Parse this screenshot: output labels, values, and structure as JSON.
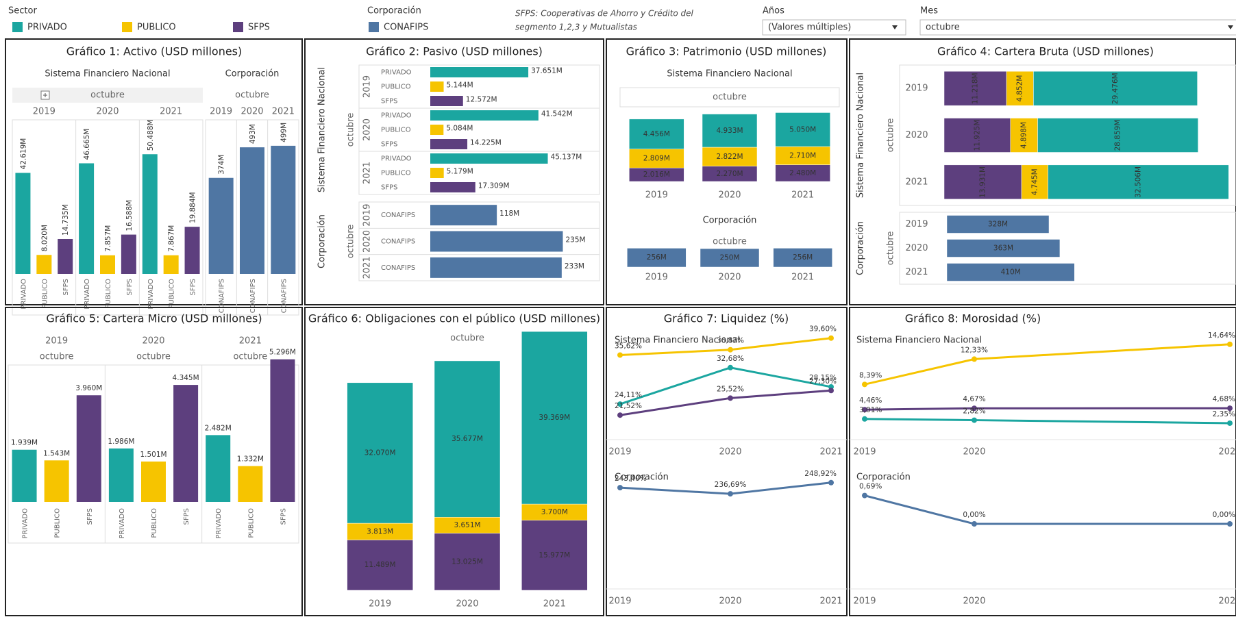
{
  "header": {
    "sector": {
      "label": "Sector",
      "items": [
        {
          "name": "PRIVADO",
          "color": "#1ba6a0"
        },
        {
          "name": "PUBLICO",
          "color": "#f6c400"
        },
        {
          "name": "SFPS",
          "color": "#5d3f7e"
        }
      ]
    },
    "corporation": {
      "label": "Corporación",
      "items": [
        {
          "name": "CONAFIPS",
          "color": "#4f76a3"
        }
      ]
    },
    "note": [
      "SFPS: Cooperativas de Ahorro y Crédito del",
      "segmento 1,2,3 y Mutualistas"
    ],
    "filters": [
      {
        "label": "Años",
        "value": "(Valores múltiples)"
      },
      {
        "label": "Mes",
        "value": "octubre"
      }
    ]
  },
  "chart_data": [
    {
      "type": "bar",
      "title": "Gráfico 1: Activo (USD millones)",
      "panes": [
        {
          "title": "Sistema Financiero Nacional",
          "month": "octubre",
          "ylim": [
            0,
            65000
          ],
          "groups": [
            {
              "label": "2019",
              "categories": [
                "PRIVADO",
                "PUBLICO",
                "SFPS"
              ],
              "colors": [
                "#1ba6a0",
                "#f6c400",
                "#5d3f7e"
              ],
              "values": [
                42619,
                8020,
                14735
              ],
              "value_labels": [
                "42.619M",
                "8.020M",
                "14.735M"
              ]
            },
            {
              "label": "2020",
              "categories": [
                "PRIVADO",
                "PUBLICO",
                "SFPS"
              ],
              "colors": [
                "#1ba6a0",
                "#f6c400",
                "#5d3f7e"
              ],
              "values": [
                46665,
                7857,
                16588
              ],
              "value_labels": [
                "46.665M",
                "7.857M",
                "16.588M"
              ]
            },
            {
              "label": "2021",
              "categories": [
                "PRIVADO",
                "PUBLICO",
                "SFPS"
              ],
              "colors": [
                "#1ba6a0",
                "#f6c400",
                "#5d3f7e"
              ],
              "values": [
                50488,
                7867,
                19884
              ],
              "value_labels": [
                "50.488M",
                "7.867M",
                "19.884M"
              ]
            }
          ]
        },
        {
          "title": "Corporación",
          "month": "octubre",
          "ylim": [
            0,
            600
          ],
          "groups": [
            {
              "label": "2019",
              "categories": [
                "CONAFIPS"
              ],
              "colors": [
                "#4f76a3"
              ],
              "values": [
                374
              ],
              "value_labels": [
                "374M"
              ]
            },
            {
              "label": "2020",
              "categories": [
                "CONAFIPS"
              ],
              "colors": [
                "#4f76a3"
              ],
              "values": [
                493
              ],
              "value_labels": [
                "493M"
              ]
            },
            {
              "label": "2021",
              "categories": [
                "CONAFIPS"
              ],
              "colors": [
                "#4f76a3"
              ],
              "values": [
                499
              ],
              "value_labels": [
                "499M"
              ]
            }
          ]
        }
      ]
    },
    {
      "type": "hbar",
      "title": "Gráfico 2: Pasivo (USD millones)",
      "panes": [
        {
          "title": "Sistema Financiero Nacional",
          "month": "octubre",
          "xlim": [
            0,
            65000
          ],
          "groups": [
            {
              "label": "2019",
              "categories": [
                "PRIVADO",
                "PUBLICO",
                "SFPS"
              ],
              "colors": [
                "#1ba6a0",
                "#f6c400",
                "#5d3f7e"
              ],
              "values": [
                37651,
                5144,
                12572
              ],
              "value_labels": [
                "37.651M",
                "5.144M",
                "12.572M"
              ]
            },
            {
              "label": "2020",
              "categories": [
                "PRIVADO",
                "PUBLICO",
                "SFPS"
              ],
              "colors": [
                "#1ba6a0",
                "#f6c400",
                "#5d3f7e"
              ],
              "values": [
                41542,
                5084,
                14225
              ],
              "value_labels": [
                "41.542M",
                "5.084M",
                "14.225M"
              ]
            },
            {
              "label": "2021",
              "categories": [
                "PRIVADO",
                "PUBLICO",
                "SFPS"
              ],
              "colors": [
                "#1ba6a0",
                "#f6c400",
                "#5d3f7e"
              ],
              "values": [
                45137,
                5179,
                17309
              ],
              "value_labels": [
                "45.137M",
                "5.179M",
                "17.309M"
              ]
            }
          ]
        },
        {
          "title": "Corporación",
          "month": "octubre",
          "xlim": [
            0,
            300
          ],
          "groups": [
            {
              "label": "2019",
              "categories": [
                "CONAFIPS"
              ],
              "colors": [
                "#4f76a3"
              ],
              "values": [
                118
              ],
              "value_labels": [
                "118M"
              ]
            },
            {
              "label": "2020",
              "categories": [
                "CONAFIPS"
              ],
              "colors": [
                "#4f76a3"
              ],
              "values": [
                235
              ],
              "value_labels": [
                "235M"
              ]
            },
            {
              "label": "2021",
              "categories": [
                "CONAFIPS"
              ],
              "colors": [
                "#4f76a3"
              ],
              "values": [
                233
              ],
              "value_labels": [
                "233M"
              ]
            }
          ]
        }
      ]
    },
    {
      "type": "stacked_bar",
      "title": "Gráfico 3: Patrimonio (USD millones)",
      "panes": [
        {
          "title": "Sistema Financiero Nacional",
          "month": "octubre",
          "ylim": [
            0,
            11000
          ],
          "categories": [
            "2019",
            "2020",
            "2021"
          ],
          "series": [
            {
              "color": "#5d3f7e",
              "values": [
                2016,
                2270,
                2480
              ],
              "value_labels": [
                "2.016M",
                "2.270M",
                "2.480M"
              ]
            },
            {
              "color": "#f6c400",
              "values": [
                2809,
                2822,
                2710
              ],
              "value_labels": [
                "2.809M",
                "2.822M",
                "2.710M"
              ]
            },
            {
              "color": "#1ba6a0",
              "values": [
                4456,
                4933,
                5050
              ],
              "value_labels": [
                "4.456M",
                "4.933M",
                "5.050M"
              ]
            }
          ]
        },
        {
          "title": "Corporación",
          "month": "octubre",
          "ylim": [
            0,
            260
          ],
          "categories": [
            "2019",
            "2020",
            "2021"
          ],
          "series": [
            {
              "color": "#4f76a3",
              "values": [
                256,
                250,
                256
              ],
              "value_labels": [
                "256M",
                "250M",
                "256M"
              ]
            }
          ]
        }
      ]
    },
    {
      "type": "stacked_hbar",
      "title": "Gráfico 4: Cartera Bruta (USD millones)",
      "panes": [
        {
          "title": "Sistema Financiero Nacional",
          "month": "octubre",
          "xlim": [
            0,
            52000
          ],
          "categories": [
            "2019",
            "2020",
            "2021"
          ],
          "series": [
            {
              "color": "#5d3f7e",
              "values": [
                11218,
                11925,
                13931
              ],
              "value_labels": [
                "11.218M",
                "11.925M",
                "13.931M"
              ]
            },
            {
              "color": "#f6c400",
              "values": [
                4852,
                4898,
                4745
              ],
              "value_labels": [
                "4.852M",
                "4.898M",
                "4.745M"
              ]
            },
            {
              "color": "#1ba6a0",
              "values": [
                29476,
                28859,
                32506
              ],
              "value_labels": [
                "29.476M",
                "28.859M",
                "32.506M"
              ]
            }
          ]
        },
        {
          "title": "Corporación",
          "month": "octubre",
          "xlim": [
            0,
            920
          ],
          "categories": [
            "2019",
            "2020",
            "2021"
          ],
          "series": [
            {
              "color": "#4f76a3",
              "values": [
                328,
                363,
                410
              ],
              "value_labels": [
                "328M",
                "363M",
                "410M"
              ]
            }
          ]
        }
      ]
    },
    {
      "type": "bar",
      "title": "Gráfico 5: Cartera Micro (USD millones)",
      "panes": [
        {
          "ylim": [
            0,
            6000
          ],
          "groups": [
            {
              "label": "2019",
              "month": "octubre",
              "categories": [
                "PRIVADO",
                "PUBLICO",
                "SFPS"
              ],
              "colors": [
                "#1ba6a0",
                "#f6c400",
                "#5d3f7e"
              ],
              "values": [
                1939,
                1543,
                3960
              ],
              "value_labels": [
                "1.939M",
                "1.543M",
                "3.960M"
              ]
            },
            {
              "label": "2020",
              "month": "octubre",
              "categories": [
                "PRIVADO",
                "PUBLICO",
                "SFPS"
              ],
              "colors": [
                "#1ba6a0",
                "#f6c400",
                "#5d3f7e"
              ],
              "values": [
                1986,
                1501,
                4345
              ],
              "value_labels": [
                "1.986M",
                "1.501M",
                "4.345M"
              ]
            },
            {
              "label": "2021",
              "month": "octubre",
              "categories": [
                "PRIVADO",
                "PUBLICO",
                "SFPS"
              ],
              "colors": [
                "#1ba6a0",
                "#f6c400",
                "#5d3f7e"
              ],
              "values": [
                2482,
                1332,
                5296
              ],
              "value_labels": [
                "2.482M",
                "1.332M",
                "5.296M"
              ]
            }
          ]
        }
      ]
    },
    {
      "type": "stacked_bar",
      "title": "Gráfico 6: Obligaciones con el público (USD millones)",
      "panes": [
        {
          "month": "octubre",
          "ylim": [
            0,
            60000
          ],
          "categories": [
            "2019",
            "2020",
            "2021"
          ],
          "series": [
            {
              "color": "#5d3f7e",
              "values": [
                11489,
                13025,
                15977
              ],
              "value_labels": [
                "11.489M",
                "13.025M",
                "15.977M"
              ]
            },
            {
              "color": "#f6c400",
              "values": [
                3813,
                3651,
                3700
              ],
              "value_labels": [
                "3.813M",
                "3.651M",
                "3.700M"
              ]
            },
            {
              "color": "#1ba6a0",
              "values": [
                32070,
                35677,
                39369
              ],
              "value_labels": [
                "32.070M",
                "35.677M",
                "39.369M"
              ]
            }
          ]
        }
      ]
    },
    {
      "type": "line",
      "title": "Gráfico 7: Liquidez (%)",
      "panes": [
        {
          "title": "Sistema Financiero Nacional",
          "ylim": [
            18.5,
            41
          ],
          "categories": [
            "2019",
            "2020",
            "2021"
          ],
          "series": [
            {
              "color": "#f6c400",
              "values": [
                35.62,
                36.87,
                39.6
              ],
              "value_labels": [
                "35,62%",
                "36,87%",
                "39,60%"
              ]
            },
            {
              "color": "#1ba6a0",
              "values": [
                24.11,
                32.68,
                28.15
              ],
              "value_labels": [
                "24,11%",
                "32,68%",
                "28,15%"
              ]
            },
            {
              "color": "#5d3f7e",
              "values": [
                21.52,
                25.52,
                27.3
              ],
              "value_labels": [
                "21,52%",
                "25,52%",
                "27,30%"
              ]
            }
          ]
        },
        {
          "title": "Corporación",
          "ylim": [
            200,
            260
          ],
          "categories": [
            "2019",
            "2020",
            "2021"
          ],
          "series": [
            {
              "color": "#4f76a3",
              "values": [
                243.4,
                236.69,
                248.92
              ],
              "value_labels": [
                "243,40%",
                "236,69%",
                "248,92%"
              ]
            }
          ]
        }
      ]
    },
    {
      "type": "line",
      "title": "Gráfico 8: Morosidad (%)",
      "panes": [
        {
          "title": "Sistema Financiero Nacional",
          "ylim": [
            0,
            16
          ],
          "categories": [
            "2019",
            "2020",
            "2021"
          ],
          "series": [
            {
              "color": "#f6c400",
              "values": [
                8.39,
                12.33,
                14.64
              ],
              "value_labels": [
                "8,39%",
                "12,33%",
                "14,64%"
              ]
            },
            {
              "color": "#5d3f7e",
              "values": [
                4.46,
                4.67,
                4.68
              ],
              "value_labels": [
                "4,46%",
                "4,67%",
                "4,68%"
              ]
            },
            {
              "color": "#1ba6a0",
              "values": [
                3.01,
                2.82,
                2.35
              ],
              "value_labels": [
                "3,01%",
                "2,82%",
                "2,35%"
              ]
            }
          ]
        },
        {
          "title": "Corporación",
          "ylim": [
            0,
            0.75
          ],
          "categories": [
            "2019",
            "2020",
            "2021"
          ],
          "series": [
            {
              "color": "#4f76a3",
              "values": [
                0.69,
                0,
                0
              ],
              "value_labels": [
                "0,69%",
                "0,00%",
                "0,00%"
              ]
            }
          ]
        }
      ]
    }
  ]
}
